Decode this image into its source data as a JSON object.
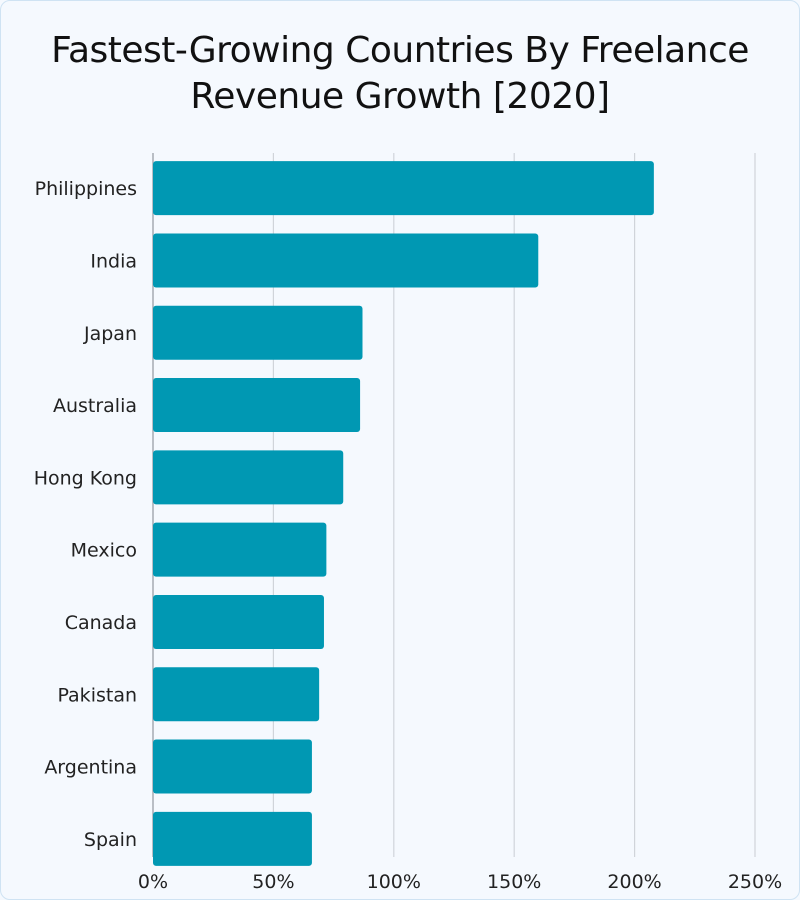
{
  "chart_data": {
    "type": "bar",
    "orientation": "horizontal",
    "title": "Fastest-Growing Countries By Freelance Revenue Growth [2020]",
    "title_lines": [
      "Fastest-Growing Countries By Freelance",
      "Revenue Growth [2020]"
    ],
    "categories": [
      "Philippines",
      "India",
      "Japan",
      "Australia",
      "Hong Kong",
      "Mexico",
      "Canada",
      "Pakistan",
      "Argentina",
      "Spain"
    ],
    "values": [
      208,
      160,
      87,
      86,
      79,
      72,
      71,
      69,
      66,
      66
    ],
    "unit": "%",
    "xlim": [
      0,
      250
    ],
    "xticks": [
      0,
      50,
      100,
      150,
      200,
      250
    ],
    "xtick_labels": [
      "0%",
      "50%",
      "100%",
      "150%",
      "200%",
      "250%"
    ],
    "xlabel": "",
    "ylabel": "",
    "grid": true,
    "colors": {
      "bar": "#0098b3",
      "grid": "#d0d4da",
      "background": "#f5f9fe"
    }
  }
}
